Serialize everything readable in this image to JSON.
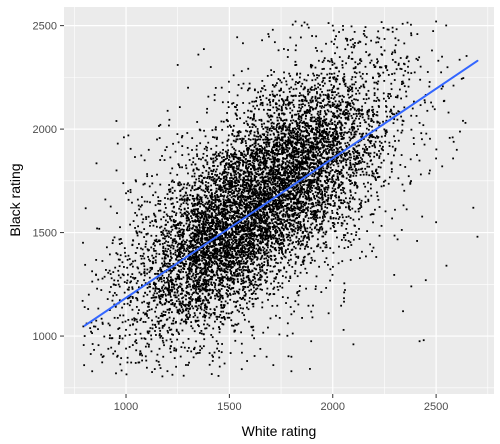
{
  "chart_data": {
    "type": "scatter",
    "title": "",
    "xlabel": "White rating",
    "ylabel": "Black rating",
    "xlim": [
      700,
      2780
    ],
    "ylim": [
      720,
      2590
    ],
    "x_ticks": [
      1000,
      1500,
      2000,
      2500
    ],
    "y_ticks": [
      1000,
      1500,
      2000,
      2500
    ],
    "x_tick_labels": [
      "1000",
      "1500",
      "2000",
      "2500"
    ],
    "y_tick_labels": [
      "1000",
      "1500",
      "2000",
      "2500"
    ],
    "grid": true,
    "legend": "none",
    "point_color": "#000000",
    "fit_line": {
      "method": "linear",
      "color": "#3366FF",
      "x": [
        800,
        2700
      ],
      "y": [
        1050,
        2330
      ]
    },
    "point_cloud": {
      "approx_count": 9000,
      "x_range": [
        790,
        2710
      ],
      "y_range": [
        800,
        2520
      ],
      "dense_center": [
        1600,
        1620
      ]
    },
    "points": [
      [
        2500,
        2520
      ],
      [
        1710,
        2480
      ],
      [
        2290,
        2470
      ],
      [
        1350,
        2360
      ],
      [
        2480,
        2380
      ],
      [
        1720,
        2420
      ],
      [
        1950,
        2290
      ],
      [
        2420,
        2030
      ],
      [
        2630,
        2040
      ],
      [
        2700,
        1480
      ],
      [
        2680,
        1620
      ],
      [
        2470,
        1800
      ],
      [
        2500,
        1550
      ],
      [
        2550,
        1340
      ],
      [
        2450,
        1270
      ],
      [
        2440,
        980
      ],
      [
        2420,
        975
      ],
      [
        2340,
        1120
      ],
      [
        2380,
        1240
      ],
      [
        1980,
        1110
      ],
      [
        2100,
        960
      ],
      [
        1800,
        900
      ],
      [
        1560,
        840
      ],
      [
        1800,
        830
      ],
      [
        1680,
        900
      ],
      [
        1300,
        860
      ],
      [
        1180,
        900
      ],
      [
        960,
        905
      ],
      [
        970,
        1000
      ],
      [
        1000,
        1030
      ],
      [
        800,
        1000
      ],
      [
        800,
        1140
      ],
      [
        790,
        1170
      ],
      [
        820,
        1200
      ],
      [
        940,
        1250
      ],
      [
        860,
        1520
      ],
      [
        1000,
        1690
      ],
      [
        1010,
        1700
      ],
      [
        900,
        1660
      ],
      [
        1150,
        1780
      ],
      [
        1110,
        1900
      ],
      [
        1150,
        1950
      ],
      [
        960,
        1930
      ],
      [
        1270,
        1960
      ],
      [
        1300,
        2200
      ],
      [
        1250,
        2310
      ],
      [
        1410,
        2300
      ],
      [
        1560,
        2280
      ],
      [
        1850,
        2500
      ],
      [
        1820,
        2520
      ],
      [
        1900,
        2450
      ],
      [
        2000,
        2500
      ],
      [
        2050,
        2480
      ],
      [
        2150,
        2460
      ],
      [
        2220,
        2420
      ],
      [
        2300,
        2380
      ],
      [
        2360,
        2350
      ],
      [
        2600,
        1900
      ],
      [
        2580,
        1960
      ],
      [
        2560,
        2080
      ]
    ]
  }
}
